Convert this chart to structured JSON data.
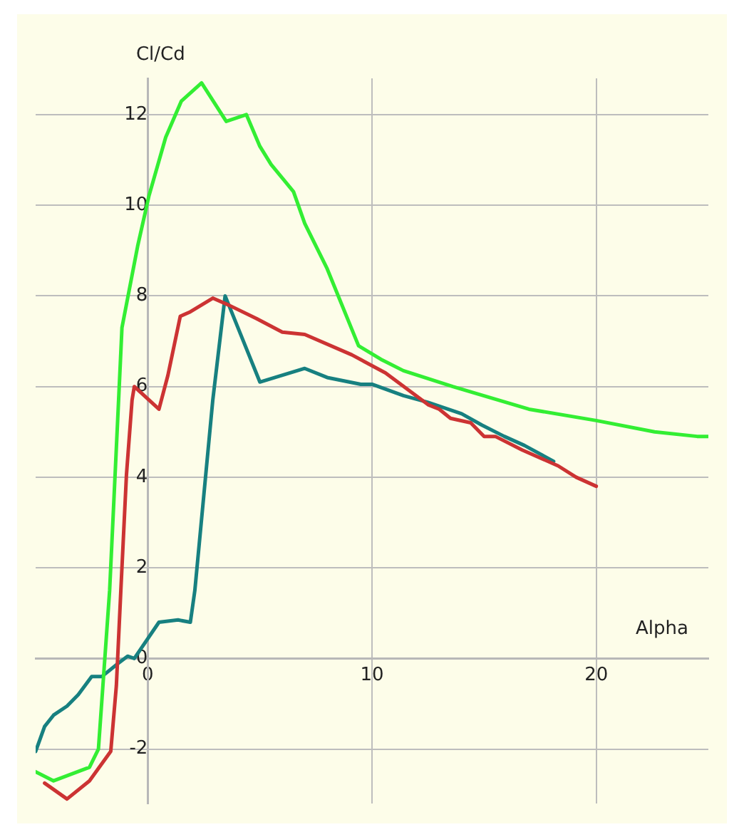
{
  "chart_data": {
    "type": "line",
    "xlabel": "Alpha",
    "ylabel": "Cl/Cd",
    "xlim": [
      -5,
      25
    ],
    "ylim": [
      -3.2,
      12.8
    ],
    "xticks": [
      0,
      10,
      20
    ],
    "yticks": [
      -2,
      0,
      2,
      4,
      6,
      8,
      10,
      12
    ],
    "grid": true,
    "legend": false,
    "marker": "none",
    "series": [
      {
        "color": "#33ee33",
        "x": [
          -5,
          -4.2,
          -2.6,
          -2.2,
          -2,
          -1.7,
          -1.5,
          -1.3,
          -1.15,
          -0.45,
          0.05,
          0.8,
          1.5,
          2.4,
          3.5,
          4.4,
          5,
          5.5,
          6.5,
          7,
          8,
          9.4,
          10.4,
          11.4,
          13.6,
          17,
          20,
          22.6,
          24.5,
          25
        ],
        "values": [
          -2.5,
          -2.7,
          -2.4,
          -2,
          -0.6,
          1.5,
          3.6,
          5.7,
          7.3,
          9.1,
          10.2,
          11.5,
          12.3,
          12.7,
          11.85,
          12,
          11.3,
          10.9,
          10.3,
          9.6,
          8.6,
          6.9,
          6.6,
          6.35,
          6,
          5.5,
          5.25,
          5,
          4.9,
          4.9
        ]
      },
      {
        "color": "#cc3333",
        "x": [
          -4.6,
          -3.6,
          -2.6,
          -1.65,
          -1.4,
          -1.2,
          -0.95,
          -0.7,
          -0.6,
          0.5,
          0.9,
          1.45,
          1.9,
          2.9,
          3.6,
          4.85,
          6,
          7,
          9.1,
          10.6,
          12.5,
          13,
          13.5,
          14.4,
          15,
          15.5,
          16.7,
          18.3,
          19.1,
          20
        ],
        "values": [
          -2.75,
          -3.1,
          -2.7,
          -2.05,
          -0.6,
          1.5,
          4.05,
          5.7,
          6,
          5.5,
          6.25,
          7.55,
          7.65,
          7.95,
          7.8,
          7.5,
          7.2,
          7.15,
          6.7,
          6.3,
          5.6,
          5.5,
          5.3,
          5.2,
          4.9,
          4.9,
          4.6,
          4.25,
          4,
          3.8
        ]
      },
      {
        "color": "#178080",
        "x": [
          -5,
          -4.6,
          -4.2,
          -3.6,
          -3.1,
          -2.5,
          -2.05,
          -1.3,
          -0.9,
          -0.6,
          0.5,
          1.35,
          1.9,
          2.1,
          2.5,
          2.9,
          3.45,
          5,
          7,
          8,
          9.5,
          10,
          11.4,
          12.5,
          14,
          14.9,
          15.9,
          16.8,
          18.1
        ],
        "values": [
          -2.05,
          -1.5,
          -1.25,
          -1.05,
          -0.8,
          -0.4,
          -0.4,
          -0.1,
          0.05,
          0,
          0.8,
          0.85,
          0.8,
          1.5,
          3.6,
          5.7,
          8,
          6.1,
          6.4,
          6.2,
          6.05,
          6.05,
          5.8,
          5.65,
          5.4,
          5.15,
          4.9,
          4.7,
          4.35
        ]
      }
    ]
  }
}
